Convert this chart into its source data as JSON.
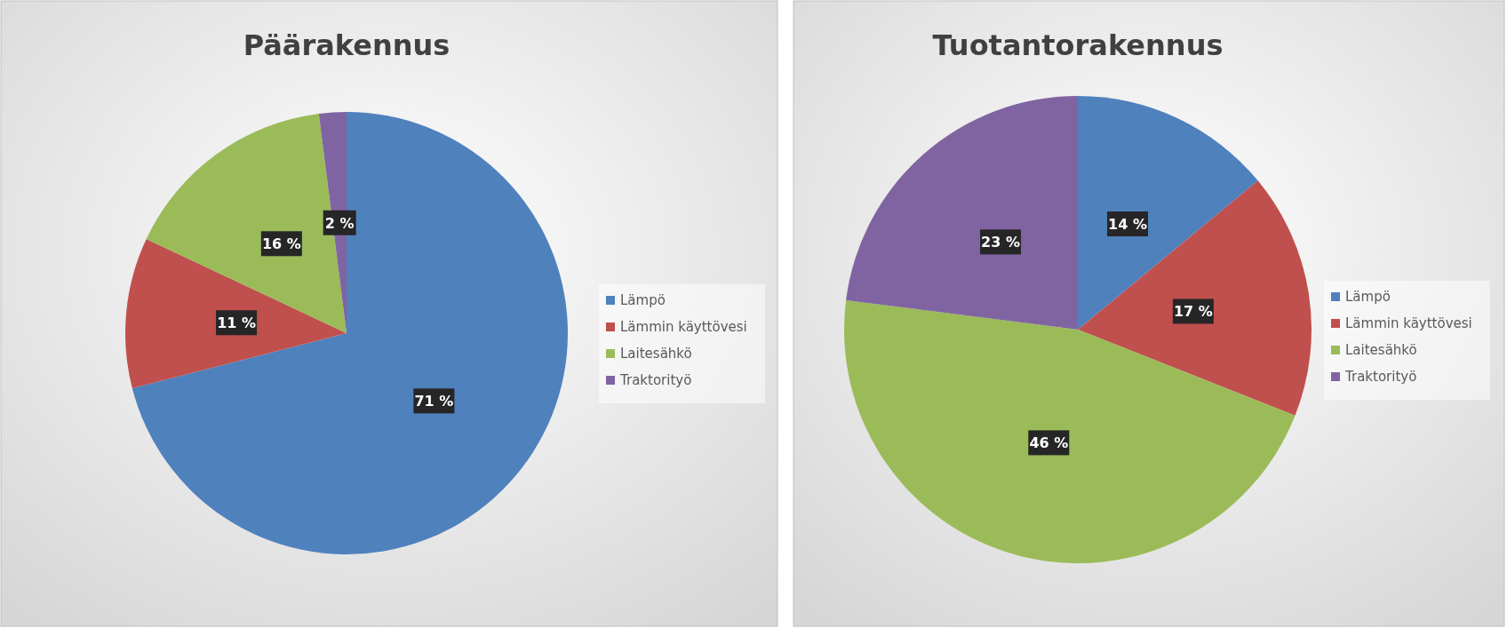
{
  "chart_data": [
    {
      "type": "pie",
      "title": "Päärakennus",
      "categories": [
        "Lämpö",
        "Lämmin käyttövesi",
        "Laitesähkö",
        "Traktorityö"
      ],
      "values": [
        71,
        11,
        16,
        2
      ],
      "colors": [
        "#4f81bd",
        "#c0504d",
        "#9bbb59",
        "#8064a2"
      ],
      "value_labels": [
        "71 %",
        "11 %",
        "16 %",
        "2 %"
      ],
      "legend": "right"
    },
    {
      "type": "pie",
      "title": "Tuotantorakennus",
      "categories": [
        "Lämpö",
        "Lämmin käyttövesi",
        "Laitesähkö",
        "Traktorityö"
      ],
      "values": [
        14,
        17,
        46,
        23
      ],
      "colors": [
        "#4f81bd",
        "#c0504d",
        "#9bbb59",
        "#8064a2"
      ],
      "value_labels": [
        "14 %",
        "17 %",
        "46 %",
        "23 %"
      ],
      "legend": "right"
    }
  ]
}
